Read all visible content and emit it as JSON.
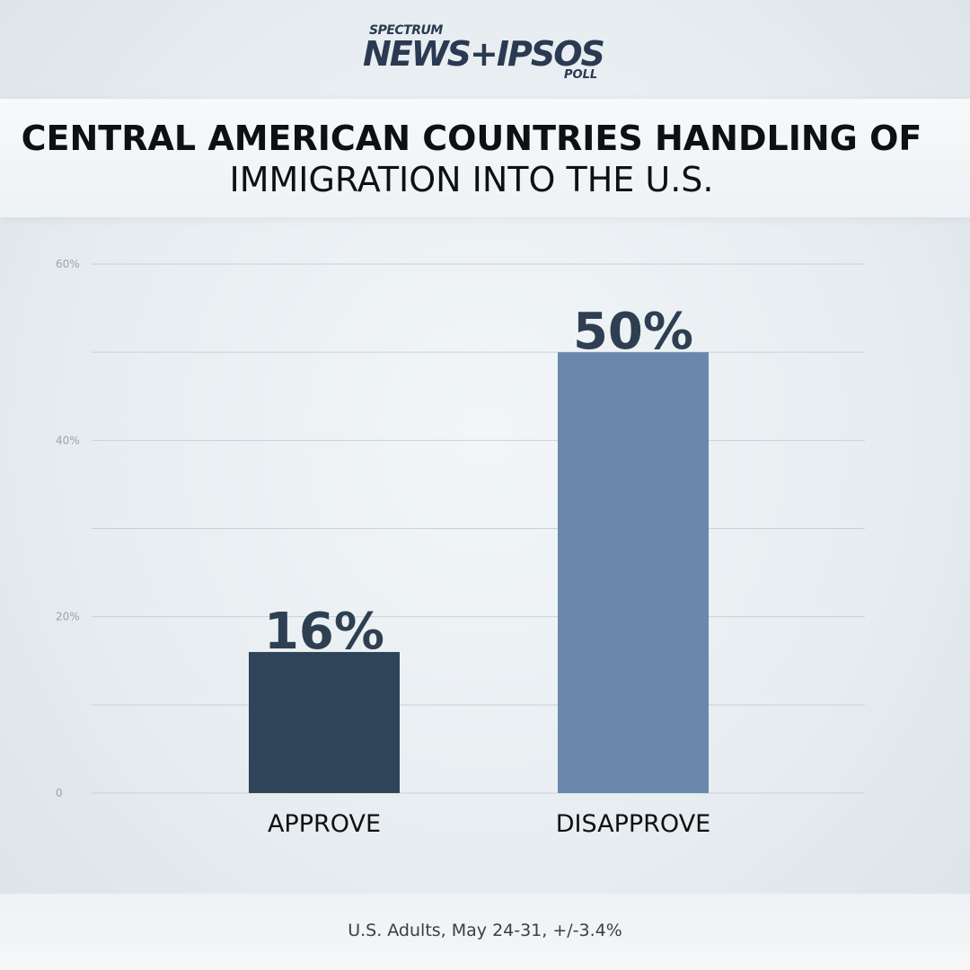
{
  "logo": {
    "spectrum": "SPECTRUM",
    "main": "NEWS+IPSOS",
    "poll": "POLL"
  },
  "title": {
    "line1": "CENTRAL AMERICAN COUNTRIES HANDLING OF",
    "line2": "IMMIGRATION INTO THE U.S."
  },
  "footer": "U.S. Adults, May 24-31, +/-3.4%",
  "colors": {
    "approve": "#2f4459",
    "disapprove": "#6a88ab",
    "grid": "#c9d1d8",
    "tick": "#9aa3ab",
    "value_label": "#2f3f52"
  },
  "chart_data": {
    "type": "bar",
    "categories": [
      "APPROVE",
      "DISAPPROVE"
    ],
    "values": [
      16,
      50
    ],
    "value_labels": [
      "16%",
      "50%"
    ],
    "ylim": [
      0,
      60
    ],
    "yticks": [
      0,
      10,
      20,
      30,
      40,
      50,
      60
    ],
    "ytick_labels": [
      "0",
      "",
      "20%",
      "",
      "40%",
      "",
      "60%"
    ],
    "grid": true,
    "xlabel": "",
    "ylabel": ""
  }
}
